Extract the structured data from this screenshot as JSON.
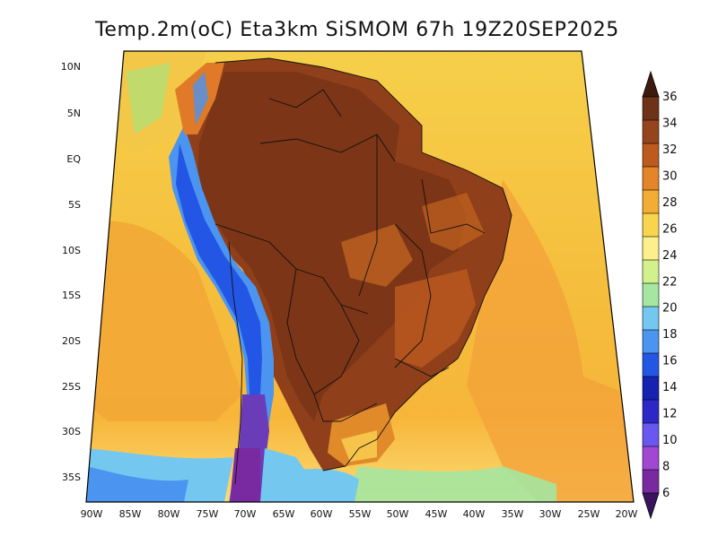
{
  "title": "Temp.2m(oC) Eta3km SiSMOM 67h 19Z20SEP2025",
  "lat_labels": [
    "10N",
    "5N",
    "EQ",
    "5S",
    "10S",
    "15S",
    "20S",
    "25S",
    "30S",
    "35S"
  ],
  "lon_labels": [
    "90W",
    "85W",
    "80W",
    "75W",
    "70W",
    "65W",
    "60W",
    "55W",
    "50W",
    "45W",
    "40W",
    "35W",
    "30W",
    "25W",
    "20W"
  ],
  "colorbar": {
    "labels": [
      "36",
      "34",
      "32",
      "30",
      "28",
      "26",
      "24",
      "22",
      "20",
      "18",
      "16",
      "14",
      "12",
      "10",
      "8",
      "6"
    ],
    "colors": [
      "#3d1a0e",
      "#6e3218",
      "#96441c",
      "#bd5a1e",
      "#e4852a",
      "#f3ac35",
      "#f9d44d",
      "#fbf08b",
      "#d2f08c",
      "#a5e6a0",
      "#74c8f0",
      "#4b94f0",
      "#2356e4",
      "#1622b0",
      "#2c28c8",
      "#6a56f0",
      "#a048d2",
      "#7a2aa0",
      "#3a1460"
    ]
  },
  "map_colors": {
    "ocean_north": "#f6ce44",
    "ocean_south": "#f7b13a",
    "land_hot": "#8d3f1a",
    "land_warm": "#b85a20",
    "andes_cold": "#5b31b0",
    "southern_cool": "#74c8f0"
  }
}
